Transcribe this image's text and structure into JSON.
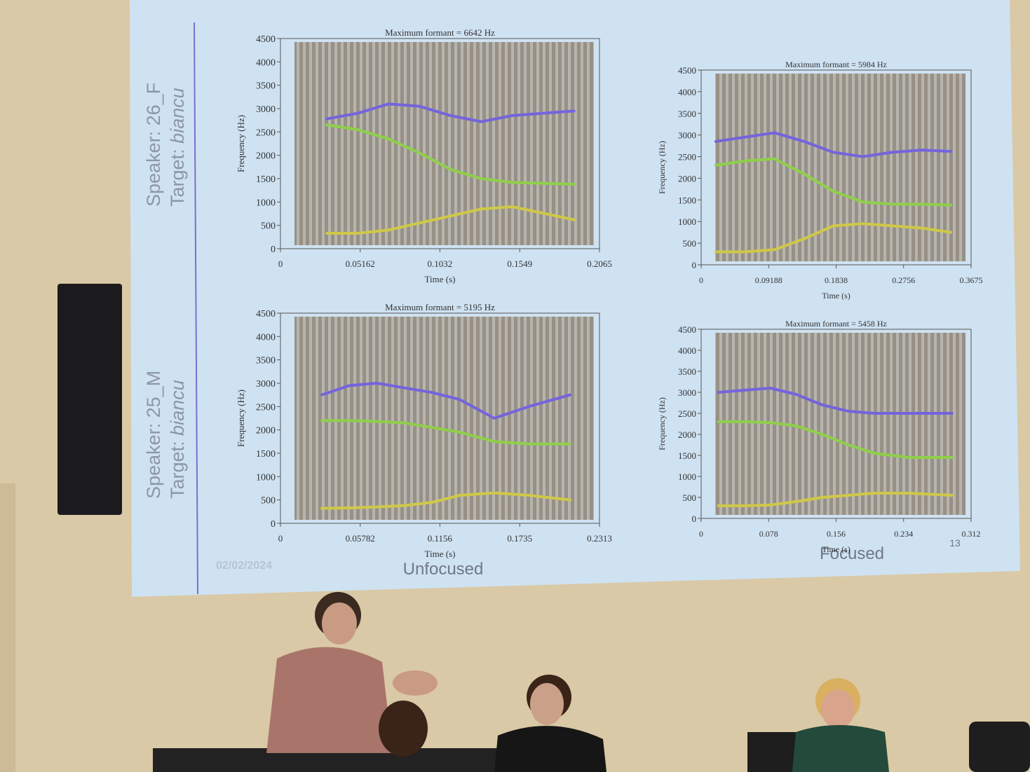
{
  "slide": {
    "speakers": [
      {
        "speaker": "Speaker: 26_F",
        "target_label": "Target:",
        "target_word": "biancu"
      },
      {
        "speaker": "Speaker: 25_M",
        "target_label": "Target:",
        "target_word": "biancu"
      }
    ],
    "date": "02/02/2024",
    "column_labels": [
      "Unfocused",
      "Focused"
    ],
    "page_number": "13"
  },
  "chart_data": [
    {
      "type": "line",
      "title": "Maximum formant = 6642 Hz",
      "x_label": "Time (s)",
      "y_label": "Frequency (Hz)",
      "xlim": [
        0,
        0.2065
      ],
      "xticks": [
        0,
        0.05162,
        0.1032,
        0.1549,
        0.2065
      ],
      "ylim": [
        0,
        4500
      ],
      "yticks": [
        0,
        500,
        1000,
        1500,
        2000,
        2500,
        3000,
        3500,
        4000,
        4500
      ],
      "x": [
        0.03,
        0.05,
        0.07,
        0.09,
        0.11,
        0.13,
        0.15,
        0.19
      ],
      "series": [
        {
          "color": "#7464dc",
          "values": [
            2780,
            2900,
            3100,
            3050,
            2850,
            2720,
            2850,
            2950
          ]
        },
        {
          "color": "#8fcf4a",
          "values": [
            2650,
            2550,
            2350,
            2050,
            1700,
            1500,
            1420,
            1380
          ]
        },
        {
          "color": "#cfc848",
          "values": [
            330,
            330,
            400,
            550,
            700,
            850,
            900,
            620
          ]
        }
      ]
    },
    {
      "type": "line",
      "title": "Maximum formant = 5984 Hz",
      "x_label": "Time (s)",
      "y_label": "Frequency (Hz)",
      "xlim": [
        0,
        0.3675
      ],
      "xticks": [
        0,
        0.09188,
        0.1838,
        0.2756,
        0.3675
      ],
      "ylim": [
        0,
        4500
      ],
      "yticks": [
        0,
        500,
        1000,
        1500,
        2000,
        2500,
        3000,
        3500,
        4000,
        4500
      ],
      "x": [
        0.02,
        0.06,
        0.1,
        0.14,
        0.18,
        0.22,
        0.26,
        0.3,
        0.34
      ],
      "series": [
        {
          "color": "#7464dc",
          "values": [
            2850,
            2950,
            3050,
            2850,
            2600,
            2500,
            2600,
            2650,
            2620
          ]
        },
        {
          "color": "#8fcf4a",
          "values": [
            2300,
            2400,
            2450,
            2100,
            1700,
            1450,
            1400,
            1400,
            1380
          ]
        },
        {
          "color": "#cfc848",
          "values": [
            300,
            300,
            350,
            600,
            900,
            950,
            900,
            850,
            750
          ]
        }
      ]
    },
    {
      "type": "line",
      "title": "Maximum formant = 5195 Hz",
      "x_label": "Time (s)",
      "y_label": "Frequency (Hz)",
      "xlim": [
        0,
        0.2313
      ],
      "xticks": [
        0,
        0.05782,
        0.1156,
        0.1735,
        0.2313
      ],
      "ylim": [
        0,
        4500
      ],
      "yticks": [
        0,
        500,
        1000,
        1500,
        2000,
        2500,
        3000,
        3500,
        4000,
        4500
      ],
      "x": [
        0.03,
        0.05,
        0.07,
        0.09,
        0.11,
        0.13,
        0.155,
        0.18,
        0.21
      ],
      "series": [
        {
          "color": "#7464dc",
          "values": [
            2750,
            2950,
            3000,
            2900,
            2800,
            2650,
            2250,
            2500,
            2750
          ]
        },
        {
          "color": "#8fcf4a",
          "values": [
            2200,
            2200,
            2180,
            2150,
            2050,
            1950,
            1750,
            1700,
            1700
          ]
        },
        {
          "color": "#cfc848",
          "values": [
            320,
            330,
            350,
            380,
            450,
            600,
            650,
            600,
            500
          ]
        }
      ]
    },
    {
      "type": "line",
      "title": "Maximum formant = 5458 Hz",
      "x_label": "Time (s)",
      "y_label": "Frequency (Hz)",
      "xlim": [
        0,
        0.312
      ],
      "xticks": [
        0,
        0.078,
        0.156,
        0.234,
        0.312
      ],
      "ylim": [
        0,
        4500
      ],
      "yticks": [
        0,
        500,
        1000,
        1500,
        2000,
        2500,
        3000,
        3500,
        4000,
        4500
      ],
      "x": [
        0.02,
        0.05,
        0.08,
        0.11,
        0.14,
        0.17,
        0.2,
        0.24,
        0.29
      ],
      "series": [
        {
          "color": "#7464dc",
          "values": [
            3000,
            3050,
            3100,
            2950,
            2700,
            2550,
            2500,
            2500,
            2500
          ]
        },
        {
          "color": "#8fcf4a",
          "values": [
            2300,
            2300,
            2280,
            2200,
            2000,
            1750,
            1550,
            1450,
            1450
          ]
        },
        {
          "color": "#cfc848",
          "values": [
            300,
            300,
            320,
            400,
            500,
            550,
            600,
            600,
            550
          ]
        }
      ]
    }
  ]
}
